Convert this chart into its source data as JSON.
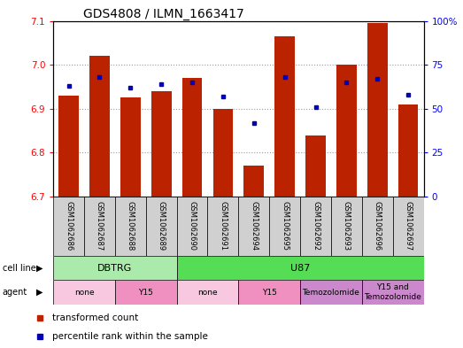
{
  "title": "GDS4808 / ILMN_1663417",
  "samples": [
    "GSM1062686",
    "GSM1062687",
    "GSM1062688",
    "GSM1062689",
    "GSM1062690",
    "GSM1062691",
    "GSM1062694",
    "GSM1062695",
    "GSM1062692",
    "GSM1062693",
    "GSM1062696",
    "GSM1062697"
  ],
  "red_values": [
    6.93,
    7.02,
    6.925,
    6.94,
    6.97,
    6.9,
    6.77,
    7.065,
    6.84,
    7.0,
    7.095,
    6.91
  ],
  "blue_values": [
    63,
    68,
    62,
    64,
    65,
    57,
    42,
    68,
    51,
    65,
    67,
    58
  ],
  "ylim_left": [
    6.7,
    7.1
  ],
  "ylim_right": [
    0,
    100
  ],
  "yticks_left": [
    6.7,
    6.8,
    6.9,
    7.0,
    7.1
  ],
  "yticks_right": [
    0,
    25,
    50,
    75,
    100
  ],
  "cell_line_groups": [
    {
      "label": "DBTRG",
      "start": 0,
      "end": 3,
      "color": "#AAEAAA"
    },
    {
      "label": "U87",
      "start": 4,
      "end": 11,
      "color": "#55DD55"
    }
  ],
  "agent_groups": [
    {
      "label": "none",
      "start": 0,
      "end": 1,
      "color": "#F8C8E0"
    },
    {
      "label": "Y15",
      "start": 2,
      "end": 3,
      "color": "#F090C0"
    },
    {
      "label": "none",
      "start": 4,
      "end": 5,
      "color": "#F8C8E0"
    },
    {
      "label": "Y15",
      "start": 6,
      "end": 7,
      "color": "#F090C0"
    },
    {
      "label": "Temozolomide",
      "start": 8,
      "end": 9,
      "color": "#CC88CC"
    },
    {
      "label": "Y15 and\nTemozolomide",
      "start": 10,
      "end": 11,
      "color": "#CC88CC"
    }
  ],
  "bar_color": "#BB2200",
  "dot_color": "#0000BB",
  "bar_bottom": 6.7,
  "bar_width": 0.65,
  "grid_color": "#999999",
  "legend_tc": "transformed count",
  "legend_pr": "percentile rank within the sample",
  "title_fontsize": 10,
  "tick_fontsize": 7.5,
  "right_tick_labels": [
    "0",
    "25",
    "50",
    "75",
    "100%"
  ]
}
